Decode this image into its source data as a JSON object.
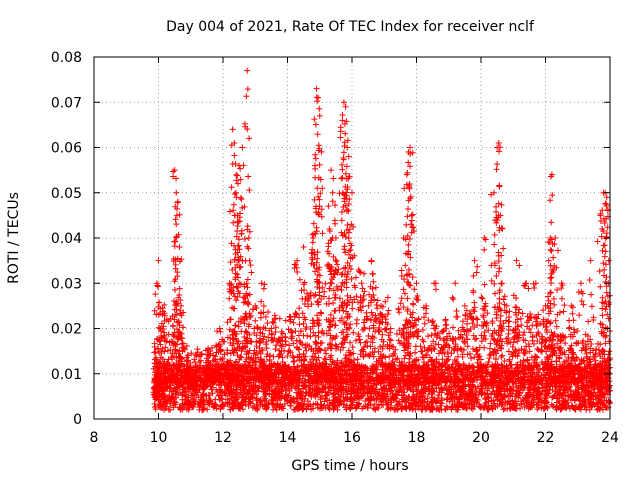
{
  "chart_data": {
    "type": "scatter",
    "title": "Day 004 of 2021, Rate Of TEC Index for receiver nclf",
    "xlabel": "GPS time / hours",
    "ylabel": "ROTI / TECUs",
    "xlim": [
      8,
      24
    ],
    "ylim": [
      0,
      0.08
    ],
    "xticks": [
      8,
      10,
      12,
      14,
      16,
      18,
      20,
      22,
      24
    ],
    "xtick_labels": [
      "8",
      "10",
      "12",
      "14",
      "16",
      "18",
      "20",
      "22",
      "24"
    ],
    "yticks": [
      0,
      0.01,
      0.02,
      0.03,
      0.04,
      0.05,
      0.06,
      0.07,
      0.08
    ],
    "ytick_labels": [
      "0",
      "0.01",
      "0.02",
      "0.03",
      "0.04",
      "0.05",
      "0.06",
      "0.07",
      "0.08"
    ],
    "grid": true,
    "marker": "+",
    "color": "#ff0000",
    "series": [
      {
        "name": "ROTI",
        "x": [
          9.9,
          9.95,
          10.0,
          10.05,
          10.5,
          10.55,
          10.6,
          10.65,
          10.7,
          10.9,
          11.1,
          11.3,
          11.6,
          11.9,
          12.2,
          12.3,
          12.35,
          12.4,
          12.45,
          12.5,
          12.6,
          12.7,
          12.75,
          12.8,
          13.0,
          13.2,
          13.5,
          13.8,
          14.1,
          14.3,
          14.5,
          14.8,
          14.85,
          14.9,
          14.95,
          15.0,
          15.3,
          15.35,
          15.4,
          15.5,
          15.7,
          15.75,
          15.8,
          15.85,
          15.9,
          16.0,
          16.3,
          16.6,
          16.9,
          17.2,
          17.6,
          17.7,
          17.75,
          17.8,
          17.85,
          18.0,
          18.3,
          18.6,
          18.9,
          19.2,
          19.5,
          19.8,
          20.1,
          20.4,
          20.5,
          20.55,
          20.6,
          20.65,
          20.8,
          21.1,
          21.4,
          21.7,
          22.0,
          22.1,
          22.15,
          22.2,
          22.3,
          22.5,
          22.8,
          23.1,
          23.4,
          23.7,
          23.8,
          23.85,
          23.9,
          23.95,
          24.0
        ],
        "y": [
          0.005,
          0.03,
          0.035,
          0.02,
          0.055,
          0.05,
          0.048,
          0.038,
          0.025,
          0.012,
          0.01,
          0.009,
          0.015,
          0.02,
          0.03,
          0.064,
          0.061,
          0.05,
          0.045,
          0.056,
          0.06,
          0.035,
          0.077,
          0.04,
          0.025,
          0.03,
          0.02,
          0.018,
          0.022,
          0.035,
          0.038,
          0.04,
          0.056,
          0.073,
          0.071,
          0.067,
          0.042,
          0.055,
          0.05,
          0.04,
          0.066,
          0.07,
          0.069,
          0.06,
          0.058,
          0.05,
          0.03,
          0.035,
          0.025,
          0.02,
          0.04,
          0.054,
          0.059,
          0.06,
          0.045,
          0.03,
          0.025,
          0.03,
          0.022,
          0.03,
          0.025,
          0.035,
          0.04,
          0.05,
          0.06,
          0.061,
          0.045,
          0.03,
          0.025,
          0.035,
          0.03,
          0.03,
          0.025,
          0.035,
          0.04,
          0.054,
          0.04,
          0.03,
          0.025,
          0.03,
          0.035,
          0.045,
          0.05,
          0.05,
          0.049,
          0.03,
          0.01
        ]
      }
    ],
    "dense_band": {
      "x_range": [
        9.85,
        24.0
      ],
      "y_range": [
        0.002,
        0.012
      ],
      "mid_envelope": [
        {
          "x": 10.0,
          "y_max": 0.028
        },
        {
          "x": 11.0,
          "y_max": 0.015
        },
        {
          "x": 12.0,
          "y_max": 0.018
        },
        {
          "x": 13.0,
          "y_max": 0.025
        },
        {
          "x": 14.0,
          "y_max": 0.022
        },
        {
          "x": 15.0,
          "y_max": 0.032
        },
        {
          "x": 16.0,
          "y_max": 0.035
        },
        {
          "x": 17.0,
          "y_max": 0.028
        },
        {
          "x": 18.0,
          "y_max": 0.024
        },
        {
          "x": 19.0,
          "y_max": 0.022
        },
        {
          "x": 20.0,
          "y_max": 0.026
        },
        {
          "x": 21.0,
          "y_max": 0.025
        },
        {
          "x": 22.0,
          "y_max": 0.022
        },
        {
          "x": 23.0,
          "y_max": 0.02
        },
        {
          "x": 24.0,
          "y_max": 0.015
        }
      ]
    }
  }
}
